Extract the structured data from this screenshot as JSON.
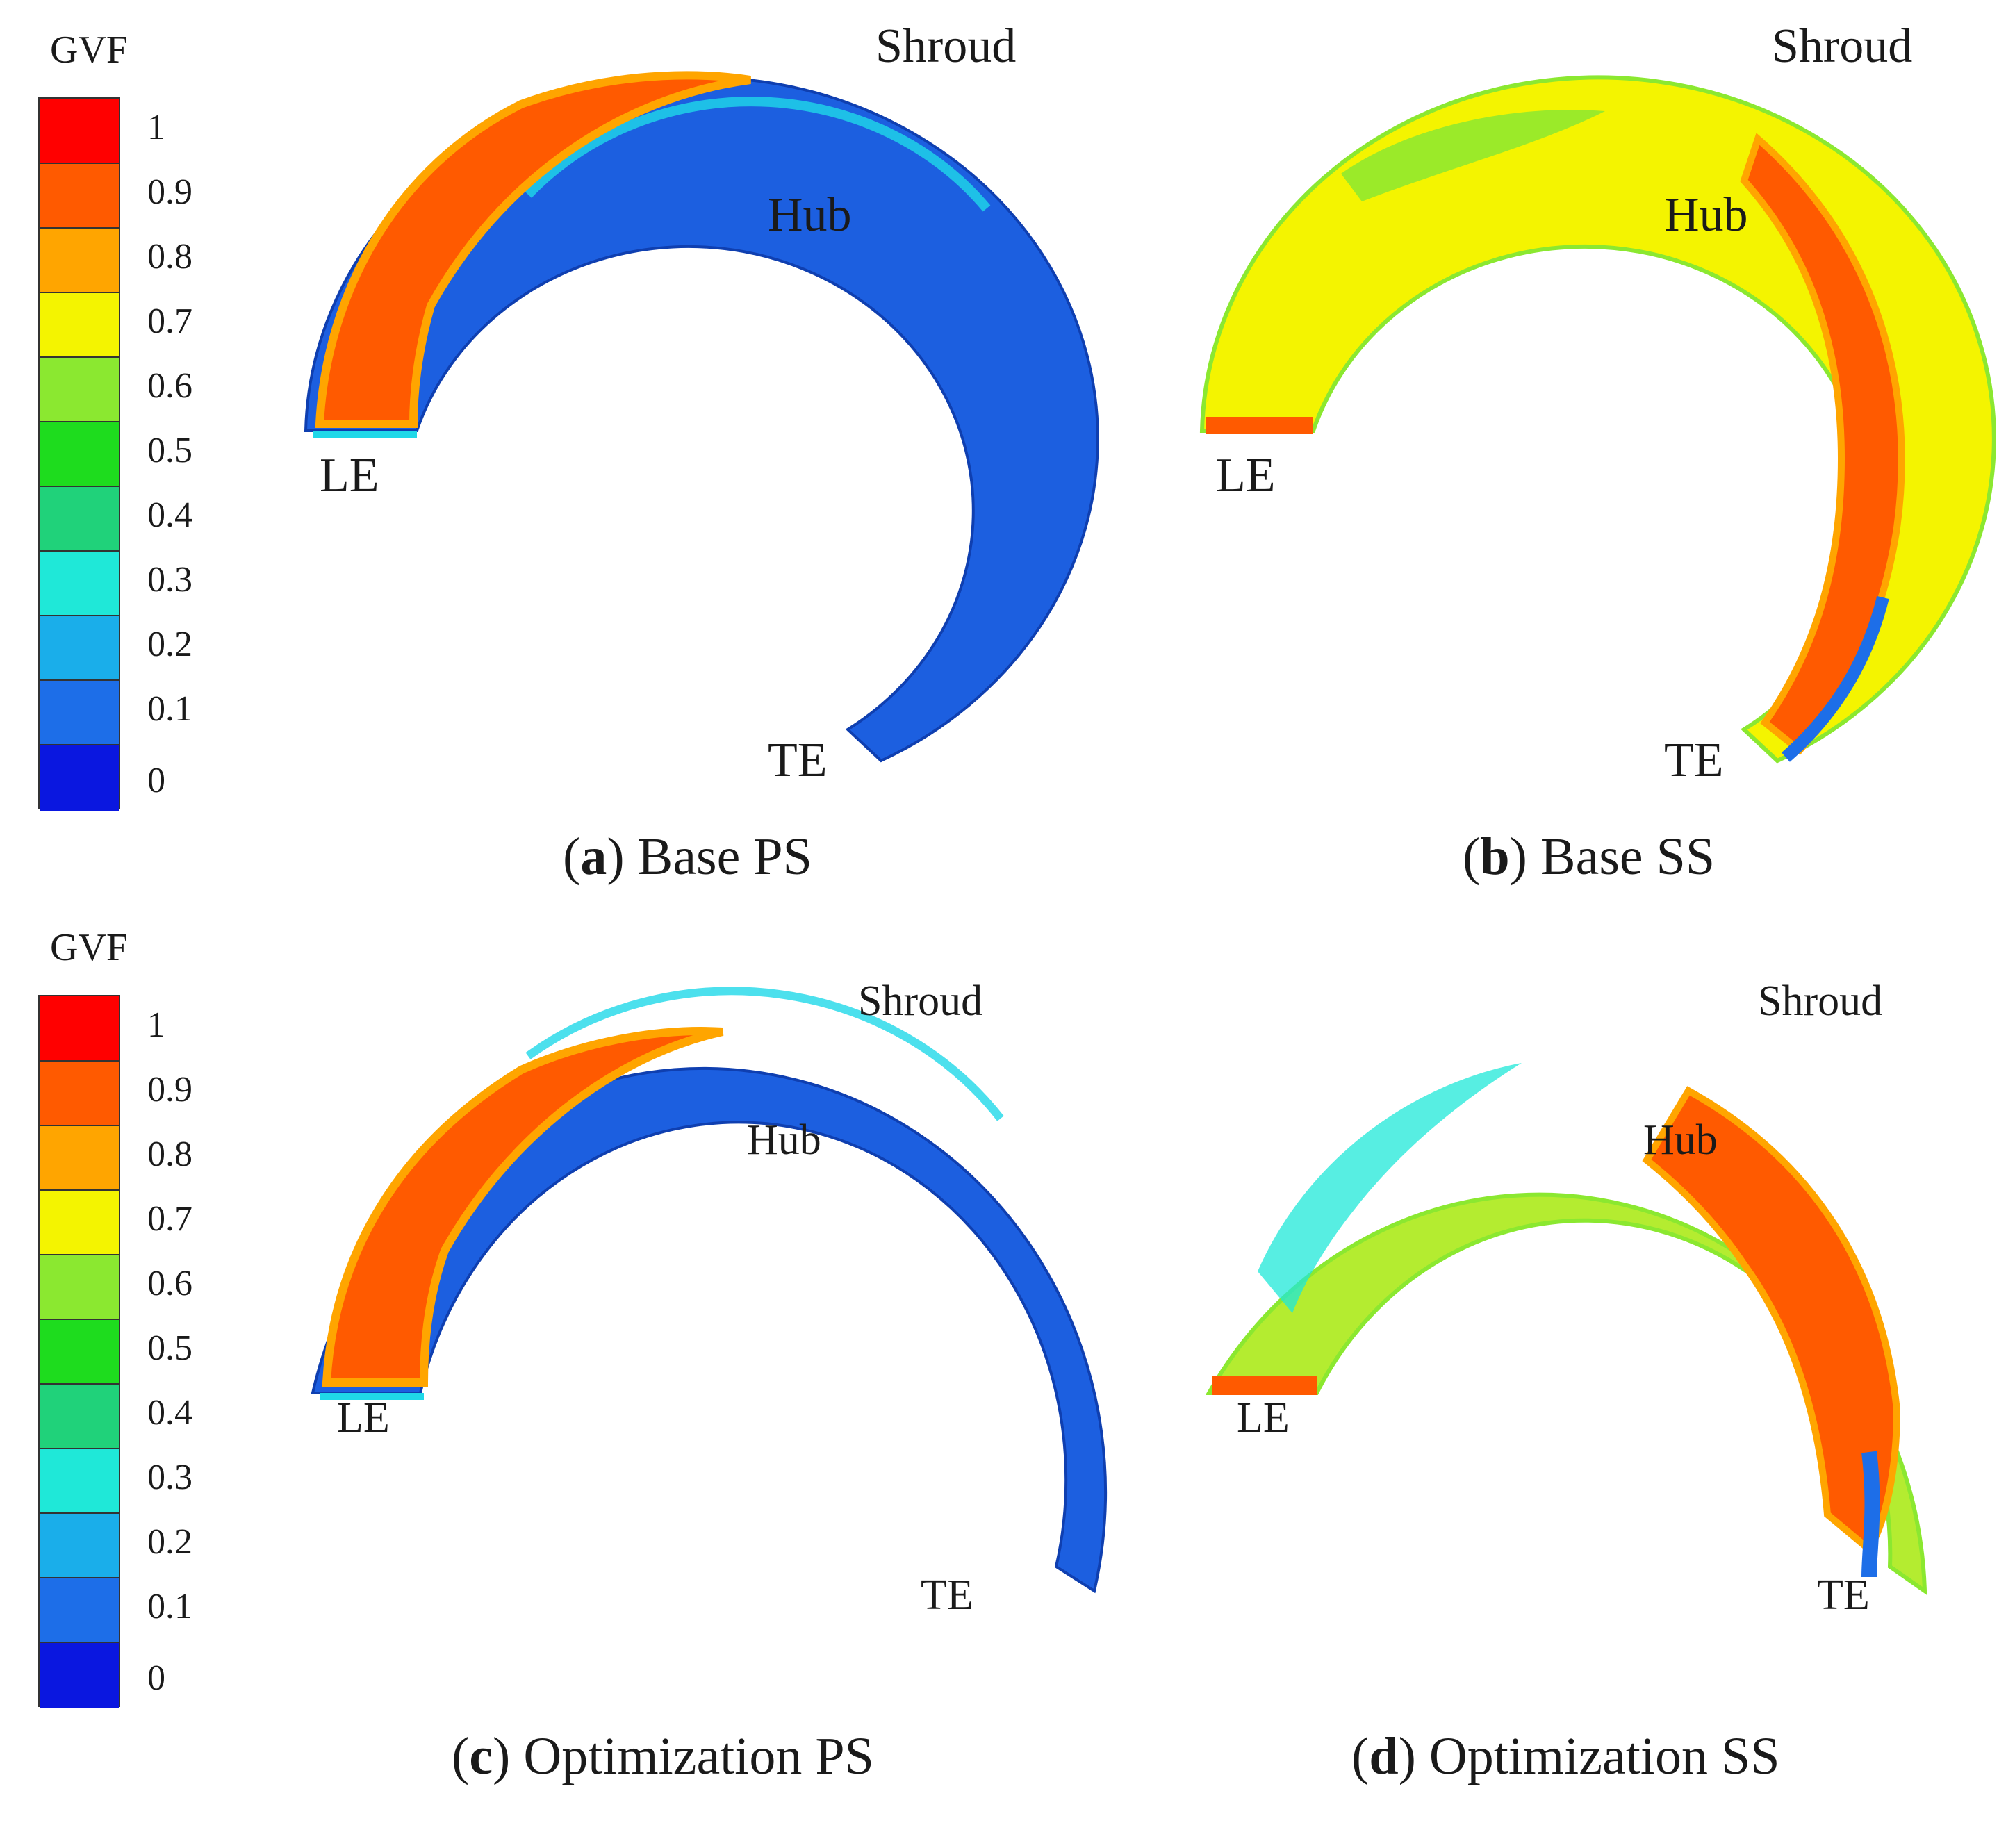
{
  "legend": {
    "title": "GVF",
    "ticks": [
      "1",
      "0.9",
      "0.8",
      "0.7",
      "0.6",
      "0.5",
      "0.4",
      "0.3",
      "0.2",
      "0.1",
      "0"
    ],
    "colors": [
      "#ff0000",
      "#ff5a00",
      "#ffa500",
      "#f4f400",
      "#8be830",
      "#1edc1e",
      "#20d27a",
      "#1fe8d8",
      "#1aaeea",
      "#1d6ee8",
      "#0a17e0"
    ]
  },
  "panels": [
    {
      "letter": "a",
      "caption": " Base PS",
      "labels": {
        "shroud": "Shroud",
        "hub": "Hub",
        "le": "LE",
        "te": "TE"
      },
      "colors": {
        "base": "#1c5fe0",
        "accent": "#1fd8e8",
        "core": "#ff5a00",
        "edge": "#ffa500"
      }
    },
    {
      "letter": "b",
      "caption": " Base SS",
      "labels": {
        "shroud": "Shroud",
        "hub": "Hub",
        "le": "LE",
        "te": "TE"
      },
      "colors": {
        "base": "#f4f400",
        "accent": "#8be830",
        "core": "#ff5a00",
        "edge": "#1d6ee8"
      }
    },
    {
      "letter": "c",
      "caption": " Optimization PS",
      "labels": {
        "shroud": "Shroud",
        "hub": "Hub",
        "le": "LE",
        "te": "TE"
      },
      "colors": {
        "base": "#1c5fe0",
        "accent": "#1fd8e8",
        "core": "#ff5a00",
        "edge": "#ffa500"
      }
    },
    {
      "letter": "d",
      "caption": " Optimization SS",
      "labels": {
        "shroud": "Shroud",
        "hub": "Hub",
        "le": "LE",
        "te": "TE"
      },
      "colors": {
        "base": "#b4ec30",
        "accent": "#1fe8d8",
        "core": "#ff5a00",
        "edge": "#1d6ee8"
      }
    }
  ]
}
